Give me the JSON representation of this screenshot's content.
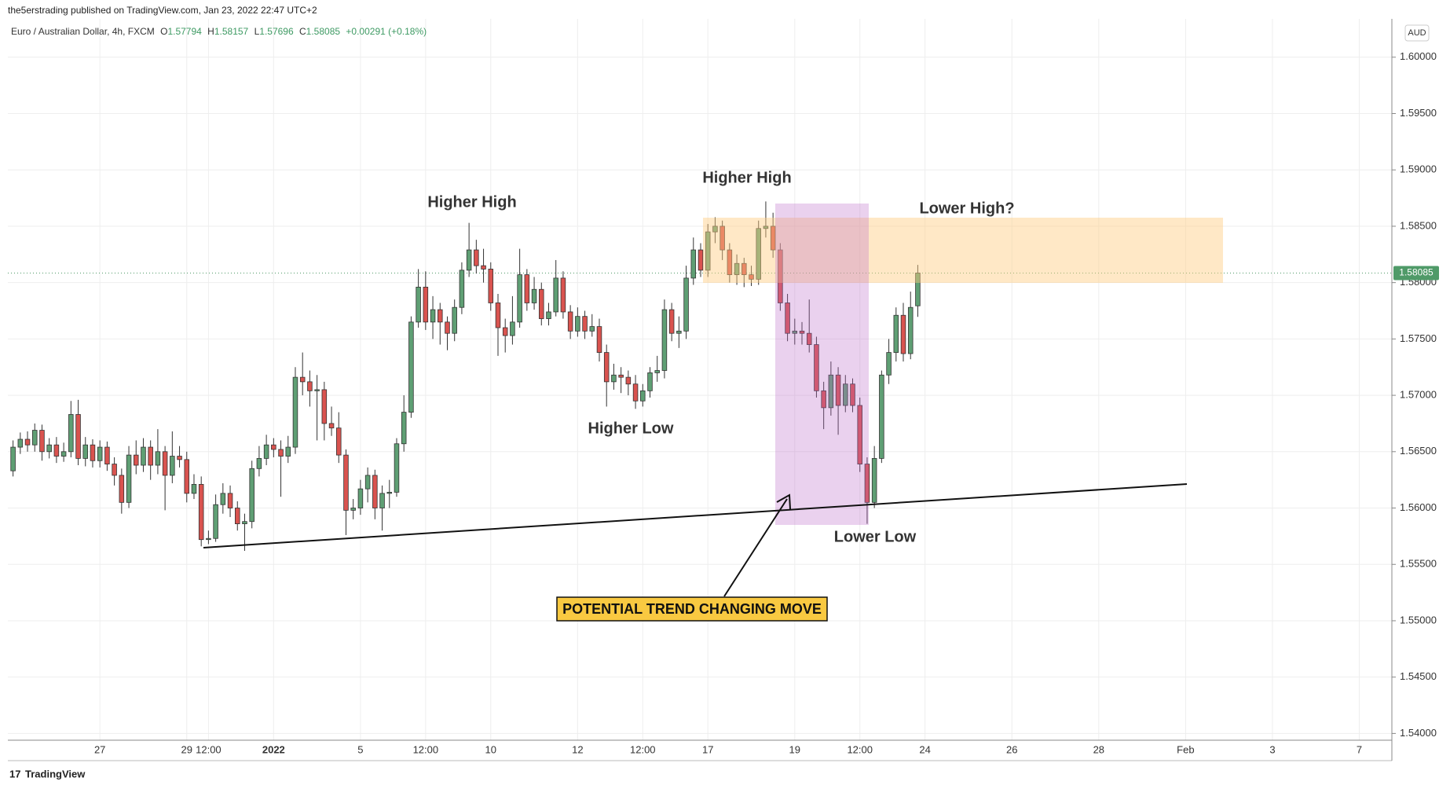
{
  "header": {
    "published": "the5erstrading published on TradingView.com, Jan 23, 2022 22:47 UTC+2"
  },
  "footer": {
    "brand": "TradingView"
  },
  "chart_data": {
    "type": "candlestick",
    "symbol": "Euro / Australian Dollar, 4h, FXCM",
    "ohlc_labels": [
      "O",
      "H",
      "L",
      "C"
    ],
    "change": "+0.00291 (+0.18%)",
    "currency": "AUD",
    "annotations": [
      "Higher High",
      "Higher High",
      "Higher Low",
      "Lower High?",
      "Lower Low",
      "POTENTIAL TREND CHANGING MOVE"
    ],
    "up_color": "#5f9f74",
    "down_color": "#d9534f",
    "wick_color": "#333333",
    "last_price_color": "#4f9a68",
    "grid": true,
    "ylim": [
      1.5394,
      1.6034
    ],
    "yticks": [
      {
        "value": 1.54,
        "label": "1.54000"
      },
      {
        "value": 1.545,
        "label": "1.54500"
      },
      {
        "value": 1.55,
        "label": "1.55000"
      },
      {
        "value": 1.555,
        "label": "1.55500"
      },
      {
        "value": 1.56,
        "label": "1.56000"
      },
      {
        "value": 1.565,
        "label": "1.56500"
      },
      {
        "value": 1.57,
        "label": "1.57000"
      },
      {
        "value": 1.575,
        "label": "1.57500"
      },
      {
        "value": 1.58,
        "label": "1.58000"
      },
      {
        "value": 1.585,
        "label": "1.58500"
      },
      {
        "value": 1.59,
        "label": "1.59000"
      },
      {
        "value": 1.595,
        "label": "1.59500"
      },
      {
        "value": 1.6,
        "label": "1.60000"
      }
    ],
    "categories": [
      null,
      null,
      null,
      null,
      null,
      null,
      null,
      null,
      null,
      null,
      null,
      null,
      "27",
      null,
      null,
      null,
      null,
      null,
      null,
      null,
      null,
      null,
      null,
      null,
      "29",
      null,
      null,
      "12:00",
      null,
      null,
      null,
      null,
      null,
      null,
      null,
      null,
      "2022",
      null,
      null,
      null,
      null,
      null,
      null,
      null,
      null,
      null,
      null,
      null,
      "5",
      null,
      null,
      null,
      null,
      null,
      null,
      null,
      null,
      "12:00",
      null,
      null,
      null,
      null,
      null,
      null,
      null,
      null,
      "10",
      null,
      null,
      null,
      null,
      null,
      null,
      null,
      null,
      null,
      null,
      null,
      "12",
      null,
      null,
      null,
      null,
      null,
      null,
      null,
      null,
      "12:00",
      null,
      null,
      null,
      null,
      null,
      null,
      null,
      null,
      "17",
      null,
      null,
      null,
      null,
      null,
      null,
      null,
      null,
      null,
      null,
      null,
      "19",
      null,
      null,
      null,
      null,
      null,
      null,
      null,
      null,
      "12:00",
      null,
      null,
      null,
      null,
      null,
      null,
      null,
      null,
      "24",
      null,
      null,
      null,
      null,
      null,
      null,
      null,
      null,
      null,
      null,
      null,
      "26",
      null,
      null,
      null,
      null,
      null,
      null,
      null,
      null,
      null,
      null,
      null,
      "28",
      null,
      null,
      null,
      null,
      null,
      null,
      null,
      null,
      null,
      null,
      null,
      "Feb",
      null,
      null,
      null,
      null,
      null,
      null,
      null,
      null,
      null,
      null,
      null,
      "3",
      null,
      null,
      null,
      null,
      null,
      null,
      null,
      null,
      null,
      null,
      null,
      "7",
      null,
      null,
      null,
      null
    ],
    "open": [
      1.5633,
      1.5654,
      1.5661,
      1.5656,
      1.5669,
      1.565,
      1.5656,
      1.5646,
      1.565,
      1.5683,
      1.5644,
      1.5656,
      1.5642,
      1.5654,
      1.5639,
      1.5629,
      1.5605,
      1.5647,
      1.5638,
      1.5654,
      1.5638,
      1.565,
      1.5629,
      1.5646,
      1.5643,
      1.5613,
      1.5621,
      1.5572,
      1.5573,
      1.5603,
      1.5613,
      1.56,
      1.5586,
      1.5588,
      1.5635,
      1.5644,
      1.5656,
      1.5652,
      1.5646,
      1.5654,
      1.5716,
      1.5712,
      1.5704,
      1.5705,
      1.5675,
      1.5671,
      1.5647,
      1.5598,
      1.56,
      1.5617,
      1.5629,
      1.56,
      1.5613,
      1.5614,
      1.5657,
      1.5685,
      1.5765,
      1.5796,
      1.5765,
      1.5776,
      1.5765,
      1.5755,
      1.5778,
      1.5811,
      1.5829,
      1.5815,
      1.5812,
      1.5782,
      1.576,
      1.5753,
      1.5765,
      1.5807,
      1.5782,
      1.5794,
      1.5768,
      1.5774,
      1.5804,
      1.5774,
      1.5757,
      1.577,
      1.5757,
      1.5761,
      1.5738,
      1.5712,
      1.5718,
      1.5716,
      1.571,
      1.5695,
      1.5704,
      1.572,
      1.5722,
      1.5776,
      1.5755,
      1.5757,
      1.5804,
      1.5829,
      1.5811,
      1.5845,
      1.585,
      1.5829,
      1.5807,
      1.5817,
      1.5807,
      1.5803,
      1.5848,
      1.585,
      1.5829,
      1.5782,
      1.5755,
      1.5757,
      1.5755,
      1.5745,
      1.5704,
      1.5689,
      1.5718,
      1.5691,
      1.571,
      1.5691,
      1.5639,
      1.5605,
      1.5644,
      1.5718,
      1.5738,
      1.5771,
      1.5737,
      1.57794,
      null,
      null,
      null,
      null,
      null,
      null,
      null,
      null,
      null,
      null,
      null,
      null,
      null,
      null,
      null,
      null,
      null,
      null,
      null,
      null,
      null,
      null,
      null,
      null,
      null,
      null,
      null,
      null,
      null,
      null,
      null,
      null,
      null,
      null,
      null,
      null,
      null,
      null,
      null,
      null,
      null,
      null,
      null,
      null,
      null,
      null,
      null,
      null,
      null,
      null,
      null,
      null,
      null,
      null,
      null,
      null,
      null,
      null,
      null,
      null,
      null,
      null,
      null,
      null,
      null
    ],
    "high": [
      1.566,
      1.5667,
      1.5668,
      1.5675,
      1.5674,
      1.5662,
      1.5663,
      1.5658,
      1.5695,
      1.5696,
      1.5663,
      1.5661,
      1.566,
      1.5659,
      1.5645,
      1.5635,
      1.5655,
      1.566,
      1.5662,
      1.566,
      1.567,
      1.5655,
      1.5668,
      1.5655,
      1.565,
      1.563,
      1.5628,
      1.558,
      1.5612,
      1.5622,
      1.562,
      1.5606,
      1.5595,
      1.5642,
      1.5655,
      1.5665,
      1.5662,
      1.566,
      1.5664,
      1.5725,
      1.5738,
      1.5722,
      1.5718,
      1.5712,
      1.569,
      1.5685,
      1.5652,
      1.5608,
      1.5625,
      1.5636,
      1.5634,
      1.562,
      1.5625,
      1.5662,
      1.57,
      1.577,
      1.5812,
      1.581,
      1.5788,
      1.5782,
      1.577,
      1.5785,
      1.5818,
      1.5853,
      1.5838,
      1.583,
      1.5818,
      1.579,
      1.5768,
      1.5788,
      1.583,
      1.5812,
      1.5805,
      1.58,
      1.5782,
      1.582,
      1.581,
      1.578,
      1.5778,
      1.5775,
      1.5772,
      1.5768,
      1.5745,
      1.5728,
      1.5725,
      1.5722,
      1.5718,
      1.571,
      1.5725,
      1.5735,
      1.5785,
      1.5782,
      1.577,
      1.5815,
      1.584,
      1.5835,
      1.5852,
      1.5858,
      1.5855,
      1.5835,
      1.5825,
      1.5822,
      1.5815,
      1.5855,
      1.5872,
      1.5862,
      1.5835,
      1.579,
      1.5768,
      1.5765,
      1.5785,
      1.5752,
      1.5712,
      1.573,
      1.5725,
      1.5718,
      1.5715,
      1.5698,
      1.5645,
      1.5655,
      1.5722,
      1.575,
      1.5778,
      1.5782,
      1.5792,
      1.58157,
      null,
      null,
      null,
      null,
      null,
      null,
      null,
      null,
      null,
      null,
      null,
      null,
      null,
      null,
      null,
      null,
      null,
      null,
      null,
      null,
      null,
      null,
      null,
      null,
      null,
      null,
      null,
      null,
      null,
      null,
      null,
      null,
      null,
      null,
      null,
      null,
      null,
      null,
      null,
      null,
      null,
      null,
      null,
      null,
      null,
      null,
      null,
      null,
      null,
      null,
      null,
      null,
      null,
      null,
      null,
      null,
      null,
      null,
      null,
      null,
      null,
      null,
      null,
      null,
      null
    ],
    "low": [
      1.5628,
      1.5648,
      1.565,
      1.565,
      1.5642,
      1.5644,
      1.564,
      1.5641,
      1.5645,
      1.5638,
      1.5637,
      1.5636,
      1.5636,
      1.5633,
      1.562,
      1.5595,
      1.56,
      1.563,
      1.5632,
      1.5625,
      1.563,
      1.5598,
      1.5622,
      1.5636,
      1.5605,
      1.5608,
      1.5566,
      1.5568,
      1.557,
      1.5595,
      1.5592,
      1.558,
      1.5562,
      1.5582,
      1.5628,
      1.5638,
      1.5645,
      1.561,
      1.564,
      1.5648,
      1.57,
      1.569,
      1.566,
      1.566,
      1.5664,
      1.564,
      1.5576,
      1.559,
      1.5594,
      1.5605,
      1.559,
      1.558,
      1.56,
      1.561,
      1.565,
      1.568,
      1.576,
      1.5758,
      1.575,
      1.5745,
      1.574,
      1.5748,
      1.5772,
      1.5805,
      1.5808,
      1.58,
      1.5775,
      1.5735,
      1.5738,
      1.5745,
      1.576,
      1.5775,
      1.5776,
      1.5762,
      1.5762,
      1.577,
      1.5768,
      1.575,
      1.5752,
      1.575,
      1.5752,
      1.573,
      1.569,
      1.5705,
      1.5702,
      1.57,
      1.5688,
      1.569,
      1.5698,
      1.5712,
      1.5715,
      1.5748,
      1.5742,
      1.575,
      1.5798,
      1.5805,
      1.5805,
      1.5835,
      1.582,
      1.58,
      1.5798,
      1.5796,
      1.5797,
      1.5798,
      1.584,
      1.5822,
      1.5775,
      1.5748,
      1.5745,
      1.5745,
      1.5738,
      1.5698,
      1.567,
      1.5682,
      1.5665,
      1.5685,
      1.5685,
      1.5632,
      1.5586,
      1.56,
      1.564,
      1.571,
      1.573,
      1.573,
      1.5732,
      1.57696,
      null,
      null,
      null,
      null,
      null,
      null,
      null,
      null,
      null,
      null,
      null,
      null,
      null,
      null,
      null,
      null,
      null,
      null,
      null,
      null,
      null,
      null,
      null,
      null,
      null,
      null,
      null,
      null,
      null,
      null,
      null,
      null,
      null,
      null,
      null,
      null,
      null,
      null,
      null,
      null,
      null,
      null,
      null,
      null,
      null,
      null,
      null,
      null,
      null,
      null,
      null,
      null,
      null,
      null,
      null,
      null,
      null,
      null,
      null,
      null,
      null,
      null,
      null,
      null,
      null
    ],
    "close": [
      1.5654,
      1.5661,
      1.5656,
      1.5669,
      1.565,
      1.5656,
      1.5646,
      1.565,
      1.5683,
      1.5644,
      1.5656,
      1.5642,
      1.5654,
      1.5639,
      1.5629,
      1.5605,
      1.5647,
      1.5638,
      1.5654,
      1.5638,
      1.565,
      1.5629,
      1.5646,
      1.5643,
      1.5613,
      1.5621,
      1.5572,
      1.5573,
      1.5603,
      1.5613,
      1.56,
      1.5586,
      1.5588,
      1.5635,
      1.5644,
      1.5656,
      1.5652,
      1.5646,
      1.5654,
      1.5716,
      1.5712,
      1.5704,
      1.5705,
      1.5675,
      1.5671,
      1.5647,
      1.5598,
      1.56,
      1.5617,
      1.5629,
      1.56,
      1.5613,
      1.5614,
      1.5657,
      1.5685,
      1.5765,
      1.5796,
      1.5765,
      1.5776,
      1.5765,
      1.5755,
      1.5778,
      1.5811,
      1.5829,
      1.5815,
      1.5812,
      1.5782,
      1.576,
      1.5753,
      1.5765,
      1.5807,
      1.5782,
      1.5794,
      1.5768,
      1.5774,
      1.5804,
      1.5774,
      1.5757,
      1.577,
      1.5757,
      1.5761,
      1.5738,
      1.5712,
      1.5718,
      1.5716,
      1.571,
      1.5695,
      1.5704,
      1.572,
      1.5722,
      1.5776,
      1.5755,
      1.5757,
      1.5804,
      1.5829,
      1.5811,
      1.5845,
      1.585,
      1.5829,
      1.5807,
      1.5817,
      1.5807,
      1.5803,
      1.5848,
      1.585,
      1.5829,
      1.5782,
      1.5755,
      1.5757,
      1.5755,
      1.5745,
      1.5704,
      1.5689,
      1.5718,
      1.5691,
      1.571,
      1.5691,
      1.5639,
      1.5605,
      1.5644,
      1.5718,
      1.5738,
      1.5771,
      1.5737,
      1.5778,
      1.58085,
      null,
      null,
      null,
      null,
      null,
      null,
      null,
      null,
      null,
      null,
      null,
      null,
      null,
      null,
      null,
      null,
      null,
      null,
      null,
      null,
      null,
      null,
      null,
      null,
      null,
      null,
      null,
      null,
      null,
      null,
      null,
      null,
      null,
      null,
      null,
      null,
      null,
      null,
      null,
      null,
      null,
      null,
      null,
      null,
      null,
      null,
      null,
      null,
      null,
      null,
      null,
      null,
      null,
      null,
      null,
      null,
      null,
      null,
      null,
      null,
      null,
      null,
      null,
      null,
      null
    ]
  }
}
